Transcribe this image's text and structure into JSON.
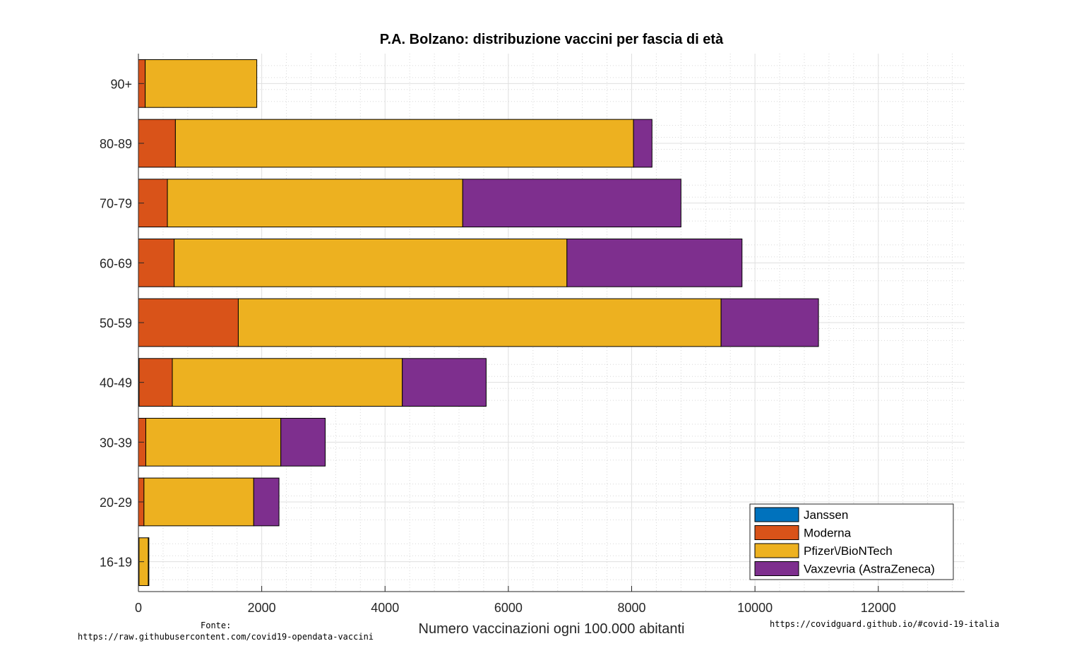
{
  "chart_data": {
    "type": "bar",
    "orientation": "horizontal",
    "stacked": true,
    "title": "P.A. Bolzano: distribuzione vaccini per fascia di età",
    "xlabel": "Numero vaccinazioni ogni 100.000 abitanti",
    "ylabel": "",
    "xlim": [
      0,
      13400
    ],
    "xticks": [
      0,
      2000,
      4000,
      6000,
      8000,
      10000,
      12000
    ],
    "categories": [
      "90+",
      "80-89",
      "70-79",
      "60-69",
      "50-59",
      "40-49",
      "30-39",
      "20-29",
      "16-19"
    ],
    "series": [
      {
        "name": "Janssen",
        "color": "#0072BD",
        "values": [
          0,
          0,
          0,
          0,
          0,
          10,
          0,
          0,
          0
        ]
      },
      {
        "name": "Moderna",
        "color": "#D95319",
        "values": [
          110,
          600,
          470,
          580,
          1620,
          540,
          120,
          90,
          10
        ]
      },
      {
        "name": "Pfizer\\/BioNTech",
        "color": "#EDB120",
        "values": [
          1810,
          7430,
          4790,
          6370,
          7830,
          3730,
          2190,
          1780,
          150
        ]
      },
      {
        "name": "Vaxzevria (AstraZeneca)",
        "color": "#7E2F8E",
        "values": [
          0,
          300,
          3540,
          2840,
          1580,
          1360,
          720,
          410,
          10
        ]
      }
    ],
    "grid": true,
    "legend_position": "bottom-right"
  },
  "footer": {
    "source_label": "Fonte:",
    "source_url": "https://raw.githubusercontent.com/covid19-opendata-vaccini",
    "site_url": "https://covidguard.github.io/#covid-19-italia"
  }
}
